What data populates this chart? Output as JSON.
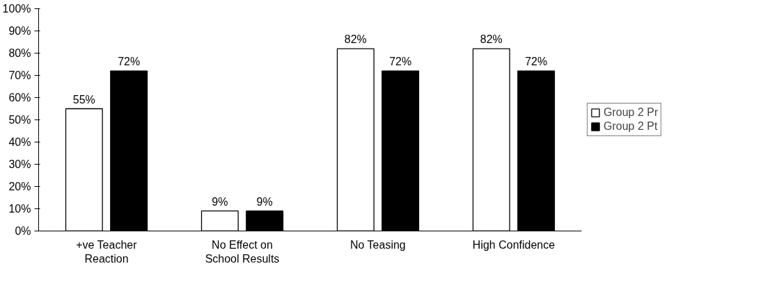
{
  "chart_data": {
    "type": "bar",
    "categories": [
      "+ve Teacher Reaction",
      "No Effect on School Results",
      "No Teasing",
      "High Confidence"
    ],
    "series": [
      {
        "name": "Group 2 Pr",
        "color": "#ffffff",
        "values": [
          55,
          9,
          82,
          82
        ]
      },
      {
        "name": "Group 2 Pt",
        "color": "#000000",
        "values": [
          72,
          9,
          72,
          72
        ]
      }
    ],
    "ylim": [
      0,
      100
    ],
    "yticks": [
      {
        "value": 0,
        "label": "0%"
      },
      {
        "value": 10,
        "label": "10%"
      },
      {
        "value": 20,
        "label": "20%"
      },
      {
        "value": 30,
        "label": "30%"
      },
      {
        "value": 40,
        "label": "40%"
      },
      {
        "value": 50,
        "label": "50%"
      },
      {
        "value": 60,
        "label": "60%"
      },
      {
        "value": 70,
        "label": "70%"
      },
      {
        "value": 80,
        "label": "80%"
      },
      {
        "value": 90,
        "label": "90%"
      },
      {
        "value": 100,
        "label": "100%"
      }
    ],
    "value_labels": [
      [
        "55%",
        "9%",
        "82%",
        "82%"
      ],
      [
        "72%",
        "9%",
        "72%",
        "72%"
      ]
    ],
    "grid": false,
    "legend": "right"
  }
}
